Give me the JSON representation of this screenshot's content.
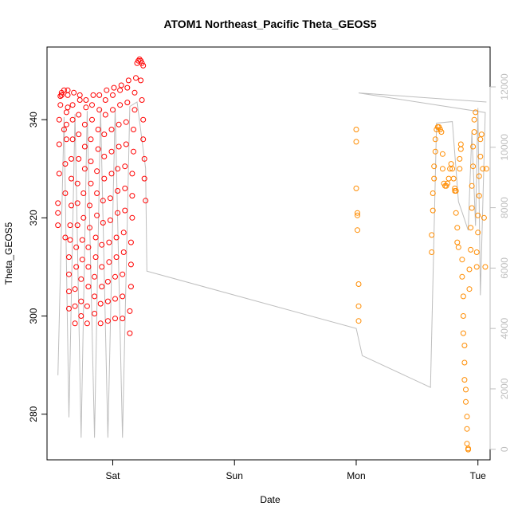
{
  "chart_data": {
    "type": "scatter",
    "title": "ATOM1 Northeast_Pacific Theta_GEOS5",
    "xlabel": "Date",
    "ylabel": "Theta_GEOS5",
    "x_ticks": [
      "Sat",
      "Sun",
      "Mon",
      "Tue"
    ],
    "x_tick_positions_days": [
      1,
      2,
      3,
      4
    ],
    "x_range_days": [
      0.46,
      4.1
    ],
    "ylim": [
      270.7,
      354.8
    ],
    "y_ticks": [
      280,
      300,
      320,
      340
    ],
    "y2lim": [
      -350,
      13320
    ],
    "y2_ticks": [
      0,
      2000,
      4000,
      6000,
      8000,
      10000,
      12000
    ],
    "grid": false,
    "legend": "none",
    "colors": {
      "first_segment": "#ff0000",
      "second_segment": "#ff8c00",
      "altitude_line": "#bebebe",
      "axis": "#000000",
      "right_axis": "#bebebe"
    },
    "series": [
      {
        "points": [
          [
            0.55,
            318.5
          ],
          [
            0.55,
            321
          ],
          [
            0.55,
            323
          ],
          [
            0.56,
            329
          ],
          [
            0.56,
            335
          ],
          [
            0.56,
            340
          ],
          [
            0.57,
            343
          ],
          [
            0.57,
            344.8
          ],
          [
            0.58,
            345
          ],
          [
            0.58,
            345.5
          ],
          [
            0.6,
            338
          ],
          [
            0.6,
            346
          ],
          [
            0.61,
            316
          ],
          [
            0.61,
            325
          ],
          [
            0.61,
            331
          ],
          [
            0.62,
            336
          ],
          [
            0.62,
            339
          ],
          [
            0.62,
            341.5
          ],
          [
            0.63,
            342.5
          ],
          [
            0.63,
            345
          ],
          [
            0.63,
            346
          ],
          [
            0.64,
            301.5
          ],
          [
            0.64,
            305
          ],
          [
            0.64,
            308.5
          ],
          [
            0.64,
            312
          ],
          [
            0.65,
            315.5
          ],
          [
            0.65,
            318.5
          ],
          [
            0.66,
            322.5
          ],
          [
            0.66,
            328
          ],
          [
            0.66,
            332
          ],
          [
            0.67,
            336
          ],
          [
            0.67,
            340
          ],
          [
            0.67,
            343
          ],
          [
            0.68,
            345.5
          ],
          [
            0.69,
            298.5
          ],
          [
            0.69,
            302
          ],
          [
            0.69,
            305.5
          ],
          [
            0.7,
            310
          ],
          [
            0.7,
            314
          ],
          [
            0.71,
            318.5
          ],
          [
            0.71,
            323
          ],
          [
            0.71,
            327
          ],
          [
            0.72,
            332
          ],
          [
            0.72,
            337
          ],
          [
            0.72,
            341
          ],
          [
            0.73,
            344
          ],
          [
            0.73,
            345
          ],
          [
            0.74,
            300
          ],
          [
            0.74,
            303
          ],
          [
            0.74,
            307.5
          ],
          [
            0.75,
            311.5
          ],
          [
            0.75,
            315.5
          ],
          [
            0.76,
            320
          ],
          [
            0.76,
            325
          ],
          [
            0.77,
            330
          ],
          [
            0.77,
            334.5
          ],
          [
            0.77,
            339
          ],
          [
            0.78,
            342.5
          ],
          [
            0.78,
            344
          ],
          [
            0.79,
            298.5
          ],
          [
            0.79,
            302
          ],
          [
            0.8,
            306
          ],
          [
            0.8,
            310
          ],
          [
            0.8,
            314
          ],
          [
            0.81,
            318
          ],
          [
            0.81,
            322.5
          ],
          [
            0.82,
            327
          ],
          [
            0.82,
            331.5
          ],
          [
            0.82,
            336
          ],
          [
            0.83,
            340
          ],
          [
            0.83,
            343
          ],
          [
            0.84,
            345
          ],
          [
            0.85,
            300.5
          ],
          [
            0.85,
            304
          ],
          [
            0.85,
            308
          ],
          [
            0.86,
            312
          ],
          [
            0.86,
            316
          ],
          [
            0.87,
            320.5
          ],
          [
            0.87,
            325
          ],
          [
            0.87,
            329.5
          ],
          [
            0.88,
            334
          ],
          [
            0.88,
            338
          ],
          [
            0.89,
            342
          ],
          [
            0.89,
            345
          ],
          [
            0.9,
            298.5
          ],
          [
            0.9,
            302.5
          ],
          [
            0.91,
            306
          ],
          [
            0.91,
            310
          ],
          [
            0.91,
            314.5
          ],
          [
            0.92,
            319
          ],
          [
            0.92,
            323.5
          ],
          [
            0.93,
            328
          ],
          [
            0.93,
            332.5
          ],
          [
            0.93,
            337
          ],
          [
            0.94,
            341
          ],
          [
            0.94,
            344
          ],
          [
            0.95,
            346
          ],
          [
            0.96,
            299
          ],
          [
            0.96,
            303
          ],
          [
            0.96,
            307
          ],
          [
            0.97,
            311
          ],
          [
            0.97,
            315
          ],
          [
            0.98,
            319.5
          ],
          [
            0.98,
            324
          ],
          [
            0.99,
            329
          ],
          [
            0.99,
            333.5
          ],
          [
            0.99,
            338
          ],
          [
            1.0,
            342
          ],
          [
            1.0,
            345
          ],
          [
            1.01,
            346.5
          ],
          [
            1.02,
            299.5
          ],
          [
            1.02,
            303.5
          ],
          [
            1.02,
            308
          ],
          [
            1.03,
            312
          ],
          [
            1.03,
            316
          ],
          [
            1.04,
            321
          ],
          [
            1.04,
            325.5
          ],
          [
            1.04,
            330
          ],
          [
            1.05,
            334.5
          ],
          [
            1.05,
            339
          ],
          [
            1.06,
            343
          ],
          [
            1.06,
            346
          ],
          [
            1.07,
            347
          ],
          [
            1.08,
            299.5
          ],
          [
            1.08,
            304
          ],
          [
            1.08,
            308.5
          ],
          [
            1.09,
            313
          ],
          [
            1.09,
            317
          ],
          [
            1.1,
            321.5
          ],
          [
            1.1,
            326
          ],
          [
            1.1,
            330.5
          ],
          [
            1.11,
            335
          ],
          [
            1.11,
            339.5
          ],
          [
            1.12,
            343.5
          ],
          [
            1.12,
            346.5
          ],
          [
            1.13,
            348
          ],
          [
            1.14,
            296.5
          ],
          [
            1.14,
            301
          ],
          [
            1.15,
            306
          ],
          [
            1.15,
            310.5
          ],
          [
            1.15,
            315
          ],
          [
            1.16,
            320
          ],
          [
            1.16,
            324.5
          ],
          [
            1.16,
            329
          ],
          [
            1.17,
            333.5
          ],
          [
            1.17,
            338
          ],
          [
            1.18,
            342
          ],
          [
            1.18,
            345.5
          ],
          [
            1.19,
            348.5
          ],
          [
            1.2,
            351.5
          ],
          [
            1.21,
            352
          ],
          [
            1.22,
            352.3
          ],
          [
            1.23,
            352
          ],
          [
            1.24,
            351.5
          ],
          [
            1.25,
            351
          ],
          [
            1.23,
            348
          ],
          [
            1.24,
            344
          ],
          [
            1.25,
            340
          ],
          [
            1.25,
            336
          ],
          [
            1.26,
            332
          ],
          [
            1.26,
            328
          ],
          [
            1.27,
            323.5
          ]
        ]
      },
      {
        "points": [
          [
            3.0,
            338
          ],
          [
            3.0,
            335.5
          ],
          [
            3.0,
            326
          ],
          [
            3.01,
            321
          ],
          [
            3.01,
            320.5
          ],
          [
            3.01,
            317.5
          ],
          [
            3.02,
            306.5
          ],
          [
            3.02,
            302
          ],
          [
            3.02,
            299
          ],
          [
            3.62,
            313
          ],
          [
            3.62,
            316.5
          ],
          [
            3.63,
            321.5
          ],
          [
            3.63,
            325
          ],
          [
            3.64,
            328
          ],
          [
            3.64,
            330.5
          ],
          [
            3.65,
            333.5
          ],
          [
            3.65,
            336
          ],
          [
            3.66,
            338
          ],
          [
            3.67,
            338.5
          ],
          [
            3.68,
            338.5
          ],
          [
            3.69,
            338
          ],
          [
            3.7,
            337.5
          ],
          [
            3.71,
            333
          ],
          [
            3.71,
            330
          ],
          [
            3.72,
            327
          ],
          [
            3.73,
            326.5
          ],
          [
            3.74,
            326.5
          ],
          [
            3.75,
            327
          ],
          [
            3.76,
            328
          ],
          [
            3.77,
            330
          ],
          [
            3.78,
            331
          ],
          [
            3.79,
            330
          ],
          [
            3.8,
            328
          ],
          [
            3.81,
            326
          ],
          [
            3.81,
            325.5
          ],
          [
            3.82,
            325.5
          ],
          [
            3.82,
            321
          ],
          [
            3.83,
            318
          ],
          [
            3.83,
            315
          ],
          [
            3.84,
            314
          ],
          [
            3.85,
            330
          ],
          [
            3.85,
            332
          ],
          [
            3.86,
            334
          ],
          [
            3.86,
            335
          ],
          [
            3.87,
            311.5
          ],
          [
            3.87,
            308
          ],
          [
            3.88,
            304
          ],
          [
            3.88,
            300
          ],
          [
            3.88,
            296.5
          ],
          [
            3.89,
            294
          ],
          [
            3.89,
            290.5
          ],
          [
            3.89,
            287
          ],
          [
            3.9,
            285
          ],
          [
            3.9,
            282.5
          ],
          [
            3.91,
            279.5
          ],
          [
            3.91,
            277
          ],
          [
            3.91,
            274
          ],
          [
            3.92,
            273
          ],
          [
            3.92,
            272.8
          ],
          [
            3.93,
            305.5
          ],
          [
            3.93,
            309.5
          ],
          [
            3.94,
            313.5
          ],
          [
            3.94,
            318
          ],
          [
            3.95,
            322
          ],
          [
            3.95,
            326.5
          ],
          [
            3.96,
            330.5
          ],
          [
            3.96,
            334.5
          ],
          [
            3.97,
            337.5
          ],
          [
            3.97,
            340
          ],
          [
            3.98,
            341.5
          ],
          [
            3.99,
            310
          ],
          [
            3.99,
            313
          ],
          [
            4.0,
            317
          ],
          [
            4.0,
            320.5
          ],
          [
            4.01,
            324.5
          ],
          [
            4.01,
            328.5
          ],
          [
            4.02,
            332.5
          ],
          [
            4.02,
            336
          ],
          [
            4.03,
            337
          ],
          [
            4.04,
            330
          ],
          [
            4.05,
            320
          ],
          [
            4.06,
            310
          ],
          [
            4.07,
            330
          ]
        ]
      }
    ],
    "altitude_line": [
      [
        0.55,
        2450
      ],
      [
        0.6,
        11000
      ],
      [
        0.64,
        1060
      ],
      [
        0.69,
        11100
      ],
      [
        0.74,
        380
      ],
      [
        0.79,
        11200
      ],
      [
        0.85,
        380
      ],
      [
        0.9,
        11250
      ],
      [
        0.96,
        380
      ],
      [
        1.02,
        11300
      ],
      [
        1.08,
        380
      ],
      [
        1.14,
        11350
      ],
      [
        1.2,
        11500
      ],
      [
        1.27,
        9300
      ],
      [
        1.28,
        5900
      ],
      [
        3.0,
        4000
      ],
      [
        3.05,
        3100
      ],
      [
        3.61,
        2050
      ],
      [
        3.66,
        10800
      ],
      [
        3.79,
        10850
      ],
      [
        3.84,
        8200
      ],
      [
        3.87,
        7850
      ],
      [
        3.92,
        7250
      ],
      [
        3.95,
        10500
      ],
      [
        3.98,
        7400
      ],
      [
        4.0,
        11300
      ],
      [
        4.02,
        5100
      ],
      [
        4.06,
        11150
      ],
      [
        3.02,
        11800
      ],
      [
        4.07,
        11500
      ]
    ]
  }
}
